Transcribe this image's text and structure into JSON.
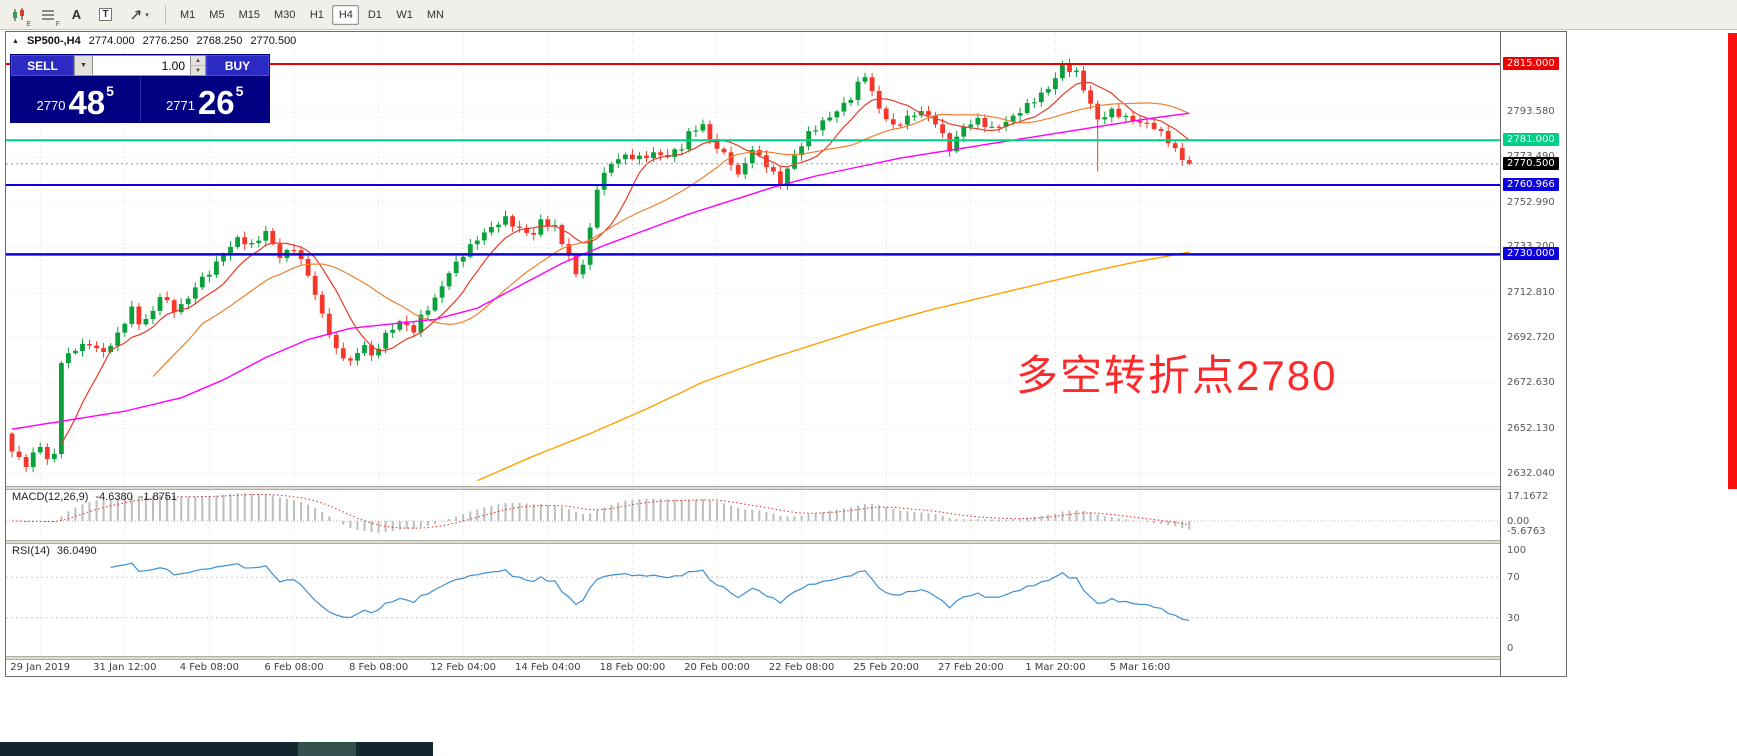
{
  "toolbar": {
    "icon_buttons": [
      {
        "name": "chart-styles",
        "badge": "E"
      },
      {
        "name": "indicator-list",
        "badge": "F"
      },
      {
        "name": "label-tool",
        "glyph": "A"
      },
      {
        "name": "text-tool",
        "glyph": "T"
      },
      {
        "name": "cursor-tool",
        "caret": "▾"
      }
    ],
    "timeframes": [
      "M1",
      "M5",
      "M15",
      "M30",
      "H1",
      "H4",
      "D1",
      "W1",
      "MN"
    ],
    "active_timeframe": "H4"
  },
  "chart": {
    "symbol": "SP500-,H4",
    "open": "2774.000",
    "high": "2776.250",
    "low": "2768.250",
    "close": "2770.500",
    "trade_panel": {
      "sell_label": "SELL",
      "buy_label": "BUY",
      "volume": "1.00",
      "sell_price_main": "2770",
      "sell_price_big": "48",
      "sell_price_sup": "5",
      "buy_price_main": "2771",
      "buy_price_big": "26",
      "buy_price_sup": "5"
    },
    "annotation": {
      "text": "多空转折点2780",
      "color": "#fb2b2b"
    },
    "levels": [
      {
        "price": 2815.0,
        "label": "2815.000",
        "color": "#ee0000",
        "width": 2,
        "style": "solid"
      },
      {
        "price": 2781.0,
        "label": "2781.000",
        "color": "#00cf87",
        "width": 2,
        "style": "solid"
      },
      {
        "price": 2770.5,
        "label": "2770.500",
        "color": "#000000",
        "width": 1,
        "style": "dotted"
      },
      {
        "price": 2760.966,
        "label": "2760.966",
        "color": "#0d00e0",
        "width": 2,
        "style": "solid"
      },
      {
        "price": 2730.0,
        "label": "2730.000",
        "color": "#0d00e0",
        "width": 2.5,
        "style": "solid"
      }
    ],
    "axis_labels": [
      {
        "price": 2793.58,
        "label": "2793.580"
      },
      {
        "price": 2773.49,
        "label": "2773.490"
      },
      {
        "price": 2752.99,
        "label": "2752.990"
      },
      {
        "price": 2733.2,
        "label": "2733.200"
      },
      {
        "price": 2712.81,
        "label": "2712.810"
      },
      {
        "price": 2692.72,
        "label": "2692.720"
      },
      {
        "price": 2672.63,
        "label": "2672.630"
      },
      {
        "price": 2652.13,
        "label": "2652.130"
      },
      {
        "price": 2632.04,
        "label": "2632.040"
      }
    ],
    "time_labels": [
      "29 Jan 2019",
      "31 Jan 12:00",
      "4 Feb 08:00",
      "6 Feb 08:00",
      "8 Feb 08:00",
      "12 Feb 04:00",
      "14 Feb 04:00",
      "18 Feb 00:00",
      "20 Feb 00:00",
      "22 Feb 08:00",
      "25 Feb 20:00",
      "27 Feb 20:00",
      "1 Mar 20:00",
      "5 Mar 16:00"
    ]
  },
  "macd": {
    "label": "MACD(12,26,9)",
    "value": "-4.6380",
    "signal_value": "-1.8751",
    "axis": [
      {
        "v": 17.1672,
        "label": "17.1672"
      },
      {
        "v": 0,
        "label": "0.00"
      },
      {
        "v": -5.6763,
        "label": "-5.6763"
      }
    ]
  },
  "rsi": {
    "label": "RSI(14)",
    "value": "36.0490",
    "axis": [
      {
        "v": 100,
        "label": "100"
      },
      {
        "v": 70,
        "label": "70"
      },
      {
        "v": 30,
        "label": "30"
      },
      {
        "v": 0,
        "label": "0"
      }
    ],
    "levels": [
      70,
      30
    ]
  },
  "chart_data": {
    "type": "candlestick",
    "symbol": "SP500-",
    "timeframe": "H4",
    "ohlc_current": {
      "open": 2774.0,
      "high": 2776.25,
      "low": 2768.25,
      "close": 2770.5
    },
    "y_axis_range": [
      2632.04,
      2815.0
    ],
    "candle_count": 168,
    "price_anchors": [
      [
        0,
        2642
      ],
      [
        2,
        2636
      ],
      [
        4,
        2645
      ],
      [
        5,
        2638
      ],
      [
        6,
        2641
      ],
      [
        7,
        2682
      ],
      [
        9,
        2688
      ],
      [
        11,
        2690
      ],
      [
        13,
        2686
      ],
      [
        15,
        2694
      ],
      [
        17,
        2706
      ],
      [
        18,
        2699
      ],
      [
        20,
        2704
      ],
      [
        21,
        2712
      ],
      [
        23,
        2705
      ],
      [
        25,
        2710
      ],
      [
        26,
        2716
      ],
      [
        28,
        2722
      ],
      [
        30,
        2730
      ],
      [
        32,
        2737
      ],
      [
        34,
        2734
      ],
      [
        36,
        2740
      ],
      [
        38,
        2729
      ],
      [
        40,
        2733
      ],
      [
        42,
        2721
      ],
      [
        44,
        2703
      ],
      [
        46,
        2687
      ],
      [
        48,
        2682
      ],
      [
        50,
        2690
      ],
      [
        51,
        2684
      ],
      [
        53,
        2694
      ],
      [
        55,
        2700
      ],
      [
        57,
        2696
      ],
      [
        58,
        2702
      ],
      [
        60,
        2710
      ],
      [
        62,
        2722
      ],
      [
        64,
        2730
      ],
      [
        66,
        2737
      ],
      [
        68,
        2742
      ],
      [
        70,
        2746
      ],
      [
        72,
        2741
      ],
      [
        74,
        2739
      ],
      [
        75,
        2745
      ],
      [
        77,
        2742
      ],
      [
        79,
        2729
      ],
      [
        80,
        2721
      ],
      [
        81,
        2726
      ],
      [
        82,
        2741
      ],
      [
        83,
        2760
      ],
      [
        85,
        2771
      ],
      [
        87,
        2774
      ],
      [
        89,
        2773
      ],
      [
        91,
        2775
      ],
      [
        93,
        2774
      ],
      [
        95,
        2778
      ],
      [
        96,
        2784
      ],
      [
        98,
        2788
      ],
      [
        99,
        2781
      ],
      [
        100,
        2778
      ],
      [
        102,
        2771
      ],
      [
        103,
        2765
      ],
      [
        105,
        2777
      ],
      [
        107,
        2770
      ],
      [
        109,
        2762
      ],
      [
        111,
        2774
      ],
      [
        113,
        2784
      ],
      [
        115,
        2789
      ],
      [
        117,
        2794
      ],
      [
        119,
        2800
      ],
      [
        120,
        2806
      ],
      [
        121,
        2810
      ],
      [
        123,
        2795
      ],
      [
        125,
        2787
      ],
      [
        127,
        2791
      ],
      [
        129,
        2794
      ],
      [
        131,
        2789
      ],
      [
        133,
        2777
      ],
      [
        135,
        2787
      ],
      [
        137,
        2790
      ],
      [
        139,
        2786
      ],
      [
        141,
        2789
      ],
      [
        143,
        2794
      ],
      [
        145,
        2799
      ],
      [
        147,
        2804
      ],
      [
        148,
        2809
      ],
      [
        149,
        2814
      ],
      [
        151,
        2811
      ],
      [
        152,
        2804
      ],
      [
        154,
        2790
      ],
      [
        156,
        2794
      ],
      [
        158,
        2791
      ],
      [
        160,
        2789
      ],
      [
        162,
        2787
      ],
      [
        163,
        2784
      ],
      [
        165,
        2777
      ],
      [
        166,
        2772
      ],
      [
        167,
        2770.5
      ]
    ],
    "wick_overrides": [
      {
        "i": 154,
        "low": 2767
      },
      {
        "i": 149,
        "high": 2816.5
      }
    ],
    "ma_fast_period": 8,
    "ma_mid_period": 21,
    "ma_magenta_anchors": [
      [
        0,
        2652
      ],
      [
        8,
        2656
      ],
      [
        16,
        2660
      ],
      [
        24,
        2666
      ],
      [
        30,
        2674
      ],
      [
        36,
        2684
      ],
      [
        42,
        2692
      ],
      [
        48,
        2697
      ],
      [
        54,
        2699
      ],
      [
        60,
        2701
      ],
      [
        66,
        2706
      ],
      [
        72,
        2716
      ],
      [
        78,
        2726
      ],
      [
        84,
        2734
      ],
      [
        90,
        2741
      ],
      [
        96,
        2748
      ],
      [
        102,
        2754
      ],
      [
        108,
        2760
      ],
      [
        114,
        2765
      ],
      [
        120,
        2769
      ],
      [
        126,
        2773
      ],
      [
        132,
        2776
      ],
      [
        138,
        2779
      ],
      [
        144,
        2782
      ],
      [
        150,
        2785
      ],
      [
        156,
        2788
      ],
      [
        162,
        2791
      ],
      [
        167,
        2793
      ]
    ],
    "ma_orange_anchors": [
      [
        66,
        2629
      ],
      [
        74,
        2640
      ],
      [
        82,
        2650
      ],
      [
        90,
        2661
      ],
      [
        98,
        2673
      ],
      [
        106,
        2682
      ],
      [
        114,
        2690
      ],
      [
        122,
        2698
      ],
      [
        130,
        2705
      ],
      [
        138,
        2711
      ],
      [
        146,
        2717
      ],
      [
        154,
        2723
      ],
      [
        160,
        2727
      ],
      [
        167,
        2731
      ]
    ],
    "indicators": {
      "macd": [
        12,
        26,
        9
      ],
      "rsi": [
        14
      ]
    },
    "colors": {
      "up": "#0aa03c",
      "down": "#f5372a",
      "ma_fast": "#e53c28",
      "ma_mid": "#f08030",
      "ma_magenta": "#ff00ff",
      "ma_orange": "#ffa200",
      "grid": "#dcdcdc",
      "macd_hist": "#bdbdbd",
      "macd_signal": "#e02a20",
      "rsi_line": "#3f8fd2"
    }
  }
}
